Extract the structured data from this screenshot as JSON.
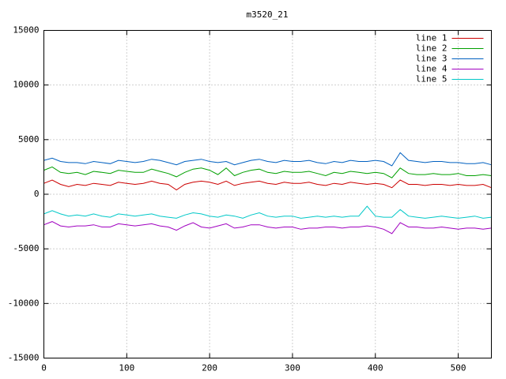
{
  "chart_data": {
    "type": "line",
    "title": "m3520_21",
    "x": [
      0,
      10,
      20,
      30,
      40,
      50,
      60,
      70,
      80,
      90,
      100,
      110,
      120,
      130,
      140,
      150,
      160,
      170,
      180,
      190,
      200,
      210,
      220,
      230,
      240,
      250,
      260,
      270,
      280,
      290,
      300,
      310,
      320,
      330,
      340,
      350,
      360,
      370,
      380,
      390,
      400,
      410,
      420,
      430,
      440,
      450,
      460,
      470,
      480,
      490,
      500,
      510,
      520,
      530,
      540
    ],
    "series": [
      {
        "name": "line 1",
        "color": "#cc0000",
        "values": [
          1000,
          1300,
          900,
          700,
          900,
          800,
          1000,
          900,
          800,
          1100,
          1000,
          900,
          1000,
          1200,
          1000,
          900,
          400,
          900,
          1100,
          1200,
          1100,
          900,
          1200,
          800,
          1000,
          1100,
          1200,
          1000,
          900,
          1100,
          1000,
          1000,
          1100,
          900,
          800,
          1000,
          900,
          1100,
          1000,
          900,
          1000,
          900,
          600,
          1300,
          900,
          900,
          800,
          900,
          900,
          800,
          900,
          800,
          800,
          900,
          600
        ]
      },
      {
        "name": "line 2",
        "color": "#00a000",
        "values": [
          2200,
          2500,
          2000,
          1900,
          2000,
          1800,
          2100,
          2000,
          1900,
          2200,
          2100,
          2000,
          2000,
          2300,
          2100,
          1900,
          1600,
          2000,
          2300,
          2400,
          2200,
          1800,
          2400,
          1700,
          2000,
          2200,
          2300,
          2000,
          1900,
          2100,
          2000,
          2000,
          2100,
          1900,
          1700,
          2000,
          1900,
          2100,
          2000,
          1900,
          2000,
          1900,
          1500,
          2400,
          1900,
          1800,
          1800,
          1900,
          1800,
          1800,
          1900,
          1700,
          1700,
          1800,
          1700
        ]
      },
      {
        "name": "line 3",
        "color": "#0060c0",
        "values": [
          3100,
          3300,
          3000,
          2900,
          2900,
          2800,
          3000,
          2900,
          2800,
          3100,
          3000,
          2900,
          3000,
          3200,
          3100,
          2900,
          2700,
          3000,
          3100,
          3200,
          3000,
          2900,
          3000,
          2700,
          2900,
          3100,
          3200,
          3000,
          2900,
          3100,
          3000,
          3000,
          3100,
          2900,
          2800,
          3000,
          2900,
          3100,
          3000,
          3000,
          3100,
          3000,
          2600,
          3800,
          3100,
          3000,
          2900,
          3000,
          3000,
          2900,
          2900,
          2800,
          2800,
          2900,
          2700
        ]
      },
      {
        "name": "line 4",
        "color": "#a000c0",
        "values": [
          -2800,
          -2500,
          -2900,
          -3000,
          -2900,
          -2900,
          -2800,
          -3000,
          -3000,
          -2700,
          -2800,
          -2900,
          -2800,
          -2700,
          -2900,
          -3000,
          -3300,
          -2900,
          -2600,
          -3000,
          -3100,
          -2900,
          -2700,
          -3100,
          -3000,
          -2800,
          -2800,
          -3000,
          -3100,
          -3000,
          -3000,
          -3200,
          -3100,
          -3100,
          -3000,
          -3000,
          -3100,
          -3000,
          -3000,
          -2900,
          -3000,
          -3200,
          -3600,
          -2600,
          -3000,
          -3000,
          -3100,
          -3100,
          -3000,
          -3100,
          -3200,
          -3100,
          -3100,
          -3200,
          -3100
        ]
      },
      {
        "name": "line 5",
        "color": "#00c8c8",
        "values": [
          -1800,
          -1500,
          -1800,
          -2000,
          -1900,
          -2000,
          -1800,
          -2000,
          -2100,
          -1800,
          -1900,
          -2000,
          -1900,
          -1800,
          -2000,
          -2100,
          -2200,
          -1900,
          -1700,
          -1800,
          -2000,
          -2100,
          -1900,
          -2000,
          -2200,
          -1900,
          -1700,
          -2000,
          -2100,
          -2000,
          -2000,
          -2200,
          -2100,
          -2000,
          -2100,
          -2000,
          -2100,
          -2000,
          -2000,
          -1100,
          -2000,
          -2100,
          -2100,
          -1400,
          -2000,
          -2100,
          -2200,
          -2100,
          -2000,
          -2100,
          -2200,
          -2100,
          -2000,
          -2200,
          -2100
        ]
      }
    ],
    "xlim": [
      0,
      540
    ],
    "xticks": [
      0,
      100,
      200,
      300,
      400,
      500
    ],
    "ylim": [
      -15000,
      15000
    ],
    "yticks": [
      -15000,
      -10000,
      -5000,
      0,
      5000,
      10000,
      15000
    ],
    "grid": true,
    "legend": "top-right"
  }
}
